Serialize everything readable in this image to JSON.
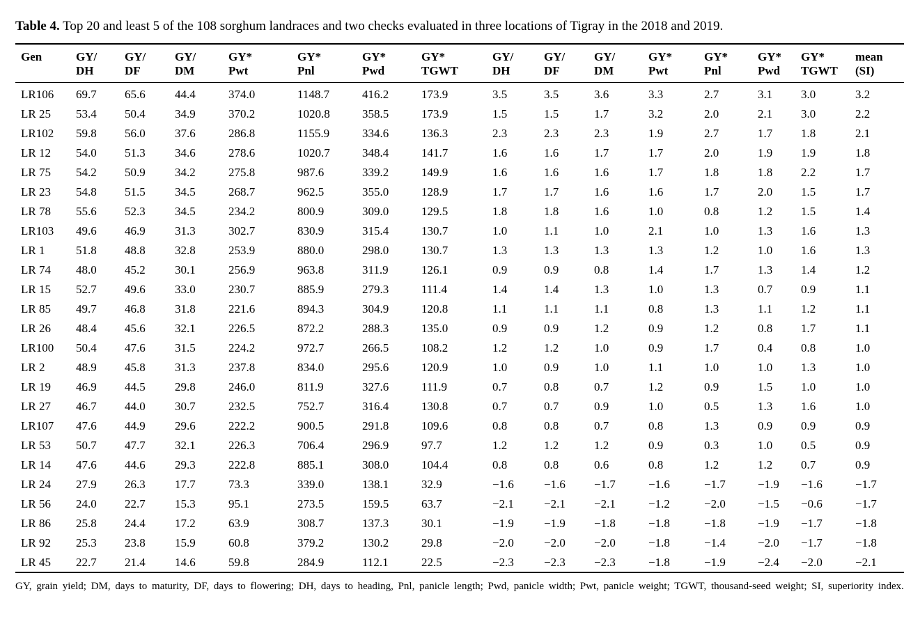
{
  "caption": {
    "label": "Table 4.",
    "text": " Top 20 and least 5 of the 108 sorghum landraces and two checks evaluated in three locations of Tigray in the 2018 and 2019."
  },
  "table": {
    "headers_line1": [
      "Gen",
      "GY/",
      "GY/",
      "GY/",
      "GY*",
      "GY*",
      "GY*",
      "GY*",
      "GY/",
      "GY/",
      "GY/",
      "GY*",
      "GY*",
      "GY*",
      "GY*",
      "mean"
    ],
    "headers_line2": [
      "",
      "DH",
      "DF",
      "DM",
      "Pwt",
      "Pnl",
      "Pwd",
      "TGWT",
      "DH",
      "DF",
      "DM",
      "Pwt",
      "Pnl",
      "Pwd",
      "TGWT",
      "(SI)"
    ],
    "rows": [
      [
        "LR106",
        "69.7",
        "65.6",
        "44.4",
        "374.0",
        "1148.7",
        "416.2",
        "173.9",
        "3.5",
        "3.5",
        "3.6",
        "3.3",
        "2.7",
        "3.1",
        "3.0",
        "3.2"
      ],
      [
        "LR 25",
        "53.4",
        "50.4",
        "34.9",
        "370.2",
        "1020.8",
        "358.5",
        "173.9",
        "1.5",
        "1.5",
        "1.7",
        "3.2",
        "2.0",
        "2.1",
        "3.0",
        "2.2"
      ],
      [
        "LR102",
        "59.8",
        "56.0",
        "37.6",
        "286.8",
        "1155.9",
        "334.6",
        "136.3",
        "2.3",
        "2.3",
        "2.3",
        "1.9",
        "2.7",
        "1.7",
        "1.8",
        "2.1"
      ],
      [
        "LR 12",
        "54.0",
        "51.3",
        "34.6",
        "278.6",
        "1020.7",
        "348.4",
        "141.7",
        "1.6",
        "1.6",
        "1.7",
        "1.7",
        "2.0",
        "1.9",
        "1.9",
        "1.8"
      ],
      [
        "LR 75",
        "54.2",
        "50.9",
        "34.2",
        "275.8",
        "987.6",
        "339.2",
        "149.9",
        "1.6",
        "1.6",
        "1.6",
        "1.7",
        "1.8",
        "1.8",
        "2.2",
        "1.7"
      ],
      [
        "LR 23",
        "54.8",
        "51.5",
        "34.5",
        "268.7",
        "962.5",
        "355.0",
        "128.9",
        "1.7",
        "1.7",
        "1.6",
        "1.6",
        "1.7",
        "2.0",
        "1.5",
        "1.7"
      ],
      [
        "LR 78",
        "55.6",
        "52.3",
        "34.5",
        "234.2",
        "800.9",
        "309.0",
        "129.5",
        "1.8",
        "1.8",
        "1.6",
        "1.0",
        "0.8",
        "1.2",
        "1.5",
        "1.4"
      ],
      [
        "LR103",
        "49.6",
        "46.9",
        "31.3",
        "302.7",
        "830.9",
        "315.4",
        "130.7",
        "1.0",
        "1.1",
        "1.0",
        "2.1",
        "1.0",
        "1.3",
        "1.6",
        "1.3"
      ],
      [
        "LR 1",
        "51.8",
        "48.8",
        "32.8",
        "253.9",
        "880.0",
        "298.0",
        "130.7",
        "1.3",
        "1.3",
        "1.3",
        "1.3",
        "1.2",
        "1.0",
        "1.6",
        "1.3"
      ],
      [
        "LR 74",
        "48.0",
        "45.2",
        "30.1",
        "256.9",
        "963.8",
        "311.9",
        "126.1",
        "0.9",
        "0.9",
        "0.8",
        "1.4",
        "1.7",
        "1.3",
        "1.4",
        "1.2"
      ],
      [
        "LR 15",
        "52.7",
        "49.6",
        "33.0",
        "230.7",
        "885.9",
        "279.3",
        "111.4",
        "1.4",
        "1.4",
        "1.3",
        "1.0",
        "1.3",
        "0.7",
        "0.9",
        "1.1"
      ],
      [
        "LR 85",
        "49.7",
        "46.8",
        "31.8",
        "221.6",
        "894.3",
        "304.9",
        "120.8",
        "1.1",
        "1.1",
        "1.1",
        "0.8",
        "1.3",
        "1.1",
        "1.2",
        "1.1"
      ],
      [
        "LR 26",
        "48.4",
        "45.6",
        "32.1",
        "226.5",
        "872.2",
        "288.3",
        "135.0",
        "0.9",
        "0.9",
        "1.2",
        "0.9",
        "1.2",
        "0.8",
        "1.7",
        "1.1"
      ],
      [
        "LR100",
        "50.4",
        "47.6",
        "31.5",
        "224.2",
        "972.7",
        "266.5",
        "108.2",
        "1.2",
        "1.2",
        "1.0",
        "0.9",
        "1.7",
        "0.4",
        "0.8",
        "1.0"
      ],
      [
        "LR 2",
        "48.9",
        "45.8",
        "31.3",
        "237.8",
        "834.0",
        "295.6",
        "120.9",
        "1.0",
        "0.9",
        "1.0",
        "1.1",
        "1.0",
        "1.0",
        "1.3",
        "1.0"
      ],
      [
        "LR 19",
        "46.9",
        "44.5",
        "29.8",
        "246.0",
        "811.9",
        "327.6",
        "111.9",
        "0.7",
        "0.8",
        "0.7",
        "1.2",
        "0.9",
        "1.5",
        "1.0",
        "1.0"
      ],
      [
        "LR 27",
        "46.7",
        "44.0",
        "30.7",
        "232.5",
        "752.7",
        "316.4",
        "130.8",
        "0.7",
        "0.7",
        "0.9",
        "1.0",
        "0.5",
        "1.3",
        "1.6",
        "1.0"
      ],
      [
        "LR107",
        "47.6",
        "44.9",
        "29.6",
        "222.2",
        "900.5",
        "291.8",
        "109.6",
        "0.8",
        "0.8",
        "0.7",
        "0.8",
        "1.3",
        "0.9",
        "0.9",
        "0.9"
      ],
      [
        "LR 53",
        "50.7",
        "47.7",
        "32.1",
        "226.3",
        "706.4",
        "296.9",
        "97.7",
        "1.2",
        "1.2",
        "1.2",
        "0.9",
        "0.3",
        "1.0",
        "0.5",
        "0.9"
      ],
      [
        "LR 14",
        "47.6",
        "44.6",
        "29.3",
        "222.8",
        "885.1",
        "308.0",
        "104.4",
        "0.8",
        "0.8",
        "0.6",
        "0.8",
        "1.2",
        "1.2",
        "0.7",
        "0.9"
      ],
      [
        "LR 24",
        "27.9",
        "26.3",
        "17.7",
        "73.3",
        "339.0",
        "138.1",
        "32.9",
        "−1.6",
        "−1.6",
        "−1.7",
        "−1.6",
        "−1.7",
        "−1.9",
        "−1.6",
        "−1.7"
      ],
      [
        "LR 56",
        "24.0",
        "22.7",
        "15.3",
        "95.1",
        "273.5",
        "159.5",
        "63.7",
        "−2.1",
        "−2.1",
        "−2.1",
        "−1.2",
        "−2.0",
        "−1.5",
        "−0.6",
        "−1.7"
      ],
      [
        "LR 86",
        "25.8",
        "24.4",
        "17.2",
        "63.9",
        "308.7",
        "137.3",
        "30.1",
        "−1.9",
        "−1.9",
        "−1.8",
        "−1.8",
        "−1.8",
        "−1.9",
        "−1.7",
        "−1.8"
      ],
      [
        "LR 92",
        "25.3",
        "23.8",
        "15.9",
        "60.8",
        "379.2",
        "130.2",
        "29.8",
        "−2.0",
        "−2.0",
        "−2.0",
        "−1.8",
        "−1.4",
        "−2.0",
        "−1.7",
        "−1.8"
      ],
      [
        "LR 45",
        "22.7",
        "21.4",
        "14.6",
        "59.8",
        "284.9",
        "112.1",
        "22.5",
        "−2.3",
        "−2.3",
        "−2.3",
        "−1.8",
        "−1.9",
        "−2.4",
        "−2.0",
        "−2.1"
      ]
    ]
  },
  "footnote": "GY, grain yield; DM, days to maturity, DF, days to flowering; DH, days to heading, Pnl, panicle length; Pwd, panicle width; Pwt, panicle weight; TGWT, thousand-seed weight; SI, superiority index."
}
